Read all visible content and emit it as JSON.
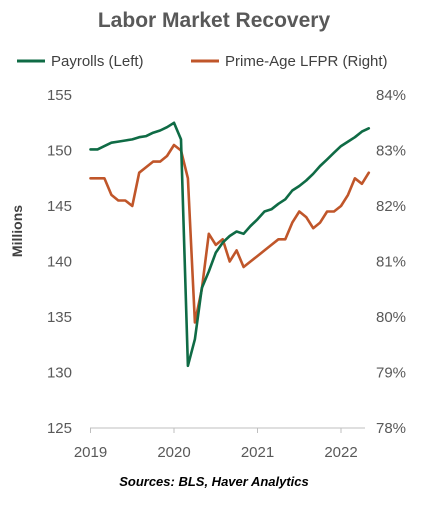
{
  "chart_data": {
    "type": "line",
    "title": "Labor Market Recovery",
    "ylabel": "Millions",
    "y2label": "",
    "source": "Sources: BLS, Haver Analytics",
    "x_ticks": [
      "2019",
      "2020",
      "2021",
      "2022"
    ],
    "ylim": [
      125,
      155
    ],
    "y_ticks": [
      "125",
      "130",
      "135",
      "140",
      "145",
      "150",
      "155"
    ],
    "y2lim": [
      78,
      84
    ],
    "y2_ticks": [
      "78%",
      "79%",
      "80%",
      "81%",
      "82%",
      "83%",
      "84%"
    ],
    "grid": false,
    "legend": "top",
    "series": [
      {
        "name": "Payrolls (Left)",
        "axis": "left",
        "color": "#0F6B45",
        "x": [
          "2019-01",
          "2019-02",
          "2019-03",
          "2019-04",
          "2019-05",
          "2019-06",
          "2019-07",
          "2019-08",
          "2019-09",
          "2019-10",
          "2019-11",
          "2019-12",
          "2020-01",
          "2020-02",
          "2020-03",
          "2020-04",
          "2020-05",
          "2020-06",
          "2020-07",
          "2020-08",
          "2020-09",
          "2020-10",
          "2020-11",
          "2020-12",
          "2021-01",
          "2021-02",
          "2021-03",
          "2021-04",
          "2021-05",
          "2021-06",
          "2021-07",
          "2021-08",
          "2021-09",
          "2021-10",
          "2021-11",
          "2021-12",
          "2022-01",
          "2022-02",
          "2022-03",
          "2022-04",
          "2022-05"
        ],
        "values": [
          150.1,
          150.1,
          150.4,
          150.7,
          150.8,
          150.9,
          151.0,
          151.2,
          151.3,
          151.6,
          151.8,
          152.1,
          152.5,
          151.0,
          130.6,
          133.0,
          137.6,
          139.1,
          140.8,
          141.7,
          142.3,
          142.7,
          142.5,
          143.2,
          143.8,
          144.5,
          144.7,
          145.2,
          145.6,
          146.4,
          146.8,
          147.3,
          147.9,
          148.6,
          149.2,
          149.8,
          150.4,
          150.8,
          151.2,
          151.7,
          152.0
        ]
      },
      {
        "name": "Prime-Age LFPR (Right)",
        "axis": "right",
        "color": "#C0562A",
        "x": [
          "2019-01",
          "2019-02",
          "2019-03",
          "2019-04",
          "2019-05",
          "2019-06",
          "2019-07",
          "2019-08",
          "2019-09",
          "2019-10",
          "2019-11",
          "2019-12",
          "2020-01",
          "2020-02",
          "2020-03",
          "2020-04",
          "2020-05",
          "2020-06",
          "2020-07",
          "2020-08",
          "2020-09",
          "2020-10",
          "2020-11",
          "2020-12",
          "2021-01",
          "2021-02",
          "2021-03",
          "2021-04",
          "2021-05",
          "2021-06",
          "2021-07",
          "2021-08",
          "2021-09",
          "2021-10",
          "2021-11",
          "2021-12",
          "2022-01",
          "2022-02",
          "2022-03",
          "2022-04",
          "2022-05"
        ],
        "values": [
          82.5,
          82.5,
          82.5,
          82.2,
          82.1,
          82.1,
          82.0,
          82.6,
          82.7,
          82.8,
          82.8,
          82.9,
          83.1,
          83.0,
          82.5,
          79.9,
          80.5,
          81.5,
          81.3,
          81.4,
          81.0,
          81.2,
          80.9,
          81.0,
          81.1,
          81.2,
          81.3,
          81.4,
          81.4,
          81.7,
          81.9,
          81.8,
          81.6,
          81.7,
          81.9,
          81.9,
          82.0,
          82.2,
          82.5,
          82.4,
          82.6
        ]
      }
    ]
  }
}
